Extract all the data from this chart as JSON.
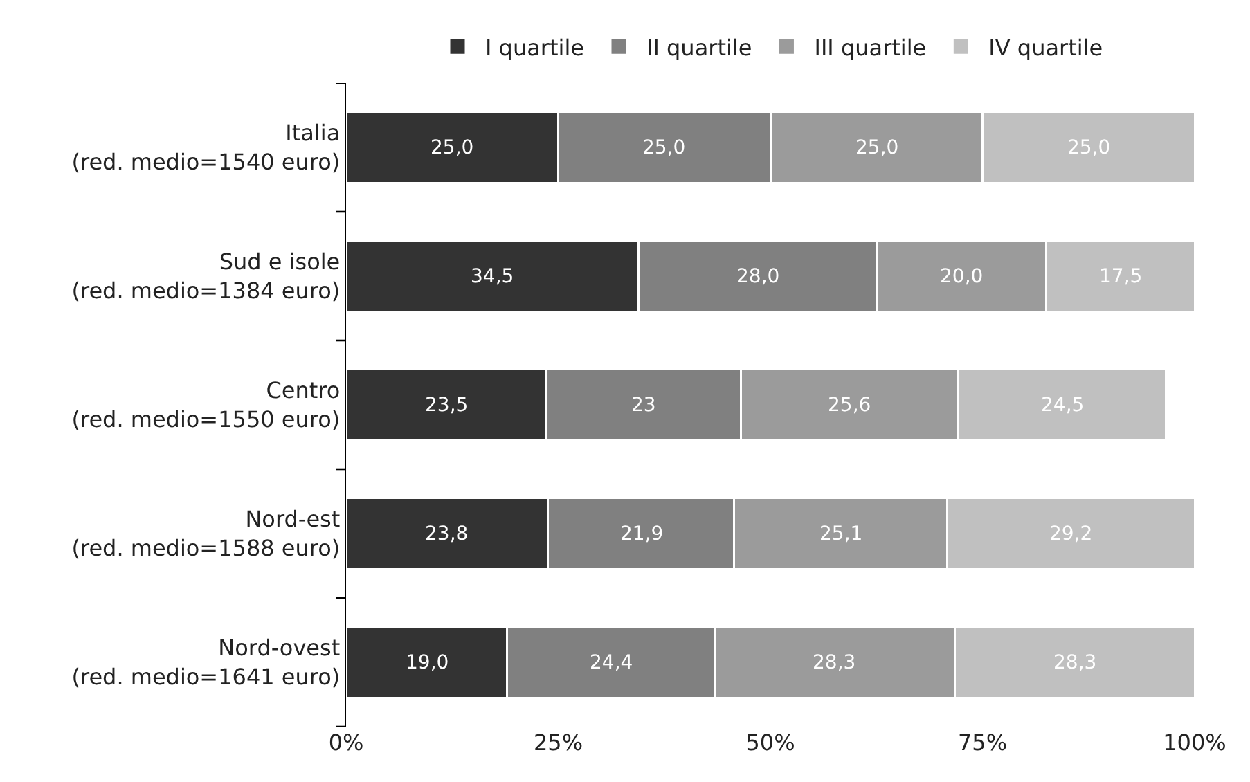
{
  "chart_data": {
    "type": "bar",
    "orientation": "horizontal",
    "stacked": true,
    "categories": [
      "Italia\n(red. medio=1540 euro)",
      "Sud e isole\n(red. medio=1384 euro)",
      "Centro\n(red. medio=1550 euro)",
      "Nord-est\n(red. medio=1588 euro)",
      "Nord-ovest\n(red. medio=1641 euro)"
    ],
    "series": [
      {
        "name": "I quartile",
        "color": "#333333",
        "values": [
          25.0,
          34.5,
          23.5,
          23.8,
          19.0
        ],
        "value_labels": [
          "25,0",
          "34,5",
          "23,5",
          "23,8",
          "19,0"
        ]
      },
      {
        "name": "II quartile",
        "color": "#808080",
        "values": [
          25.0,
          28.0,
          23,
          21.9,
          24.4
        ],
        "value_labels": [
          "25,0",
          "28,0",
          "23",
          "21,9",
          "24,4"
        ]
      },
      {
        "name": "III quartile",
        "color": "#9b9b9b",
        "values": [
          25.0,
          20.0,
          25.6,
          25.1,
          28.3
        ],
        "value_labels": [
          "25,0",
          "20,0",
          "25,6",
          "25,1",
          "28,3"
        ]
      },
      {
        "name": "IV quartile",
        "color": "#c0c0c0",
        "values": [
          25.0,
          17.5,
          24.5,
          29.2,
          28.3
        ],
        "value_labels": [
          "25,0",
          "17,5",
          "24,5",
          "29,2",
          "28,3"
        ]
      }
    ],
    "xlim": [
      0,
      100
    ],
    "xticks": [
      {
        "value": 0,
        "label": "0%"
      },
      {
        "value": 25,
        "label": "25%"
      },
      {
        "value": 50,
        "label": "50%"
      },
      {
        "value": 75,
        "label": "75%"
      },
      {
        "value": 100,
        "label": "100%"
      }
    ],
    "grid": false,
    "legend": "top"
  }
}
